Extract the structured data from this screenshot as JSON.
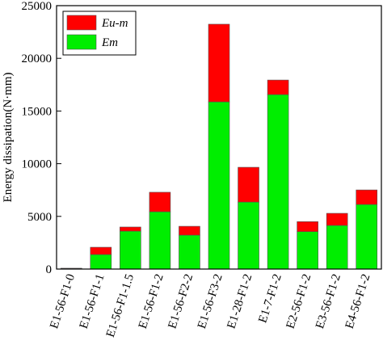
{
  "chart_data": {
    "type": "stacked_bar",
    "y_label": "Energy dissipation(N·mm)",
    "categories": [
      "E1-56-F1-0",
      "E1-56-F1-1",
      "E1-56-F1-1.5",
      "E1-56-F1-2",
      "E1-56-F2-2",
      "E1-56-F3-2",
      "E1-28-F1-2",
      "E1-7-F1-2",
      "E2-56-F1-2",
      "E3-56-F1-2",
      "E4-56-F1-2"
    ],
    "series": [
      {
        "name": "Em",
        "color": "#00ee00",
        "values": [
          50,
          1380,
          3600,
          5440,
          3220,
          15870,
          6360,
          16560,
          3550,
          4140,
          6130
        ]
      },
      {
        "name": "Eu-m",
        "color": "#ff0000",
        "values": [
          30,
          690,
          390,
          1850,
          840,
          7370,
          3300,
          1380,
          950,
          1150,
          1380
        ]
      }
    ],
    "ylim": [
      0,
      25000
    ],
    "yticks": [
      0,
      5000,
      10000,
      15000,
      20000,
      25000
    ],
    "legend": "upper-left"
  }
}
